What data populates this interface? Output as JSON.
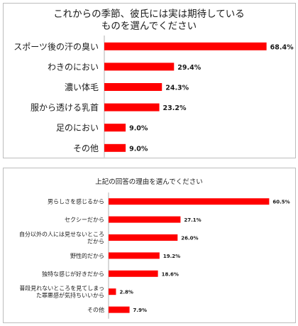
{
  "chart_data": [
    {
      "type": "bar",
      "orientation": "horizontal",
      "title_lines": [
        "これからの季節、彼氏には実は期待している",
        "ものを選んでください"
      ],
      "categories": [
        "スポーツ後の汗の臭い",
        "わきのにおい",
        "濃い体毛",
        "服から透ける乳首",
        "足のにおい",
        "その他"
      ],
      "values": [
        68.4,
        29.4,
        24.3,
        23.2,
        9.0,
        9.0
      ],
      "value_labels": [
        "68.4%",
        "29.4%",
        "24.3%",
        "23.2%",
        "9.0%",
        "9.0%"
      ],
      "color": "#ff0000",
      "xlim": [
        0,
        70
      ],
      "grid": false,
      "legend": "none"
    },
    {
      "type": "bar",
      "orientation": "horizontal",
      "title_lines": [
        "上記の回答の理由を選んでください"
      ],
      "categories": [
        [
          "男らしさを感じるから"
        ],
        [
          "セクシーだから"
        ],
        [
          "自分以外の人には見せないところ",
          "だから"
        ],
        [
          "野性的だから"
        ],
        [
          "独特な感じが好きだから"
        ],
        [
          "普段見れないところを見てしまっ",
          "た罪悪感が気持ちいいから"
        ],
        [
          "その他"
        ]
      ],
      "values": [
        60.5,
        27.1,
        26.0,
        19.2,
        18.6,
        2.8,
        7.9
      ],
      "value_labels": [
        "60.5%",
        "27.1%",
        "26.0%",
        "19.2%",
        "18.6%",
        "2.8%",
        "7.9%"
      ],
      "color": "#ff0000",
      "xlim": [
        0,
        62
      ],
      "grid": false,
      "legend": "none"
    }
  ]
}
